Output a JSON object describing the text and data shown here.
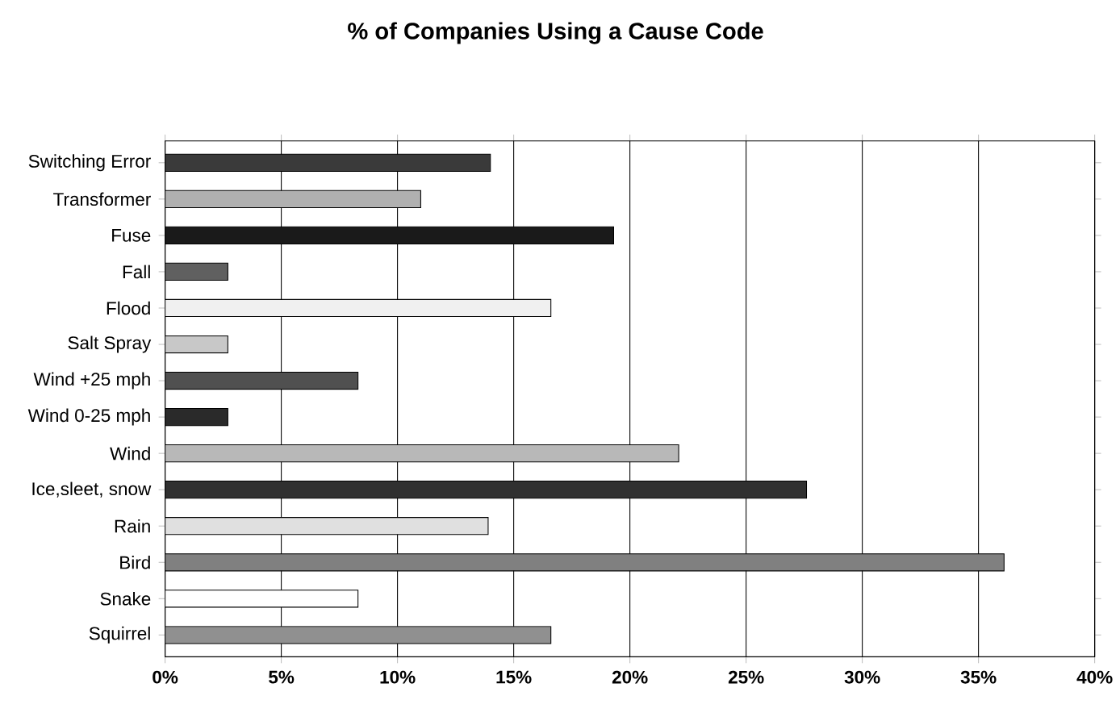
{
  "chart_data": {
    "type": "bar",
    "orientation": "horizontal",
    "title": "% of Companies Using a Cause Code",
    "categories": [
      "Switching Error",
      "Transformer",
      "Fuse",
      "Fall",
      "Flood",
      "Salt Spray",
      "Wind +25 mph",
      "Wind 0-25 mph",
      "Wind",
      "Ice,sleet, snow",
      "Rain",
      "Bird",
      "Snake",
      "Squirrel"
    ],
    "values": [
      14.0,
      11.0,
      19.3,
      2.7,
      16.6,
      2.7,
      8.3,
      2.7,
      22.1,
      27.6,
      13.9,
      36.1,
      8.3,
      16.6
    ],
    "colors": [
      "#3a3a3a",
      "#b0b0b0",
      "#1a1a1a",
      "#606060",
      "#f0f0f0",
      "#c8c8c8",
      "#505050",
      "#2a2a2a",
      "#b8b8b8",
      "#303030",
      "#e0e0e0",
      "#808080",
      "#ffffff",
      "#909090"
    ],
    "xlim": [
      0,
      40
    ],
    "xticks": [
      {
        "value": 0,
        "label": "0%"
      },
      {
        "value": 5,
        "label": "5%"
      },
      {
        "value": 10,
        "label": "10%"
      },
      {
        "value": 15,
        "label": "15%"
      },
      {
        "value": 20,
        "label": "20%"
      },
      {
        "value": 25,
        "label": "25%"
      },
      {
        "value": 30,
        "label": "30%"
      },
      {
        "value": 35,
        "label": "35%"
      },
      {
        "value": 40,
        "label": "40%"
      }
    ],
    "grid": "x"
  }
}
